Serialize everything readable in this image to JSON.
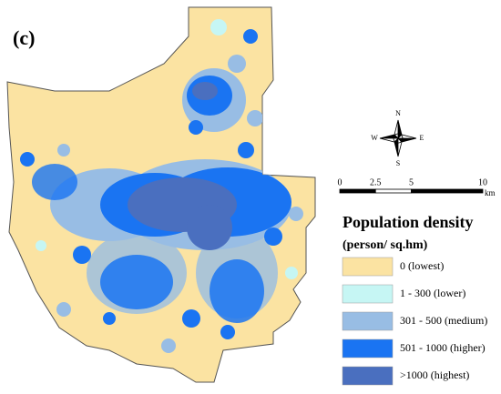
{
  "panel_label": "(c)",
  "compass": {
    "north": "N",
    "south": "S",
    "east": "E",
    "west": "W"
  },
  "scale_bar": {
    "ticks": [
      0,
      2.5,
      5,
      10
    ],
    "max": 10,
    "unit": "km"
  },
  "legend": {
    "title": "Population density",
    "subtitle": "(person/ sq.hm)",
    "items": [
      {
        "label": "0 (lowest)",
        "color": "#fbe3a2"
      },
      {
        "label": "1 - 300 (lower)",
        "color": "#c6f6f4"
      },
      {
        "label": "301 - 500 (medium)",
        "color": "#98bde4"
      },
      {
        "label": "501 - 1000 (higher)",
        "color": "#1a74f2"
      },
      {
        "label": ">1000 (highest)",
        "color": "#4a6fbf"
      }
    ]
  }
}
